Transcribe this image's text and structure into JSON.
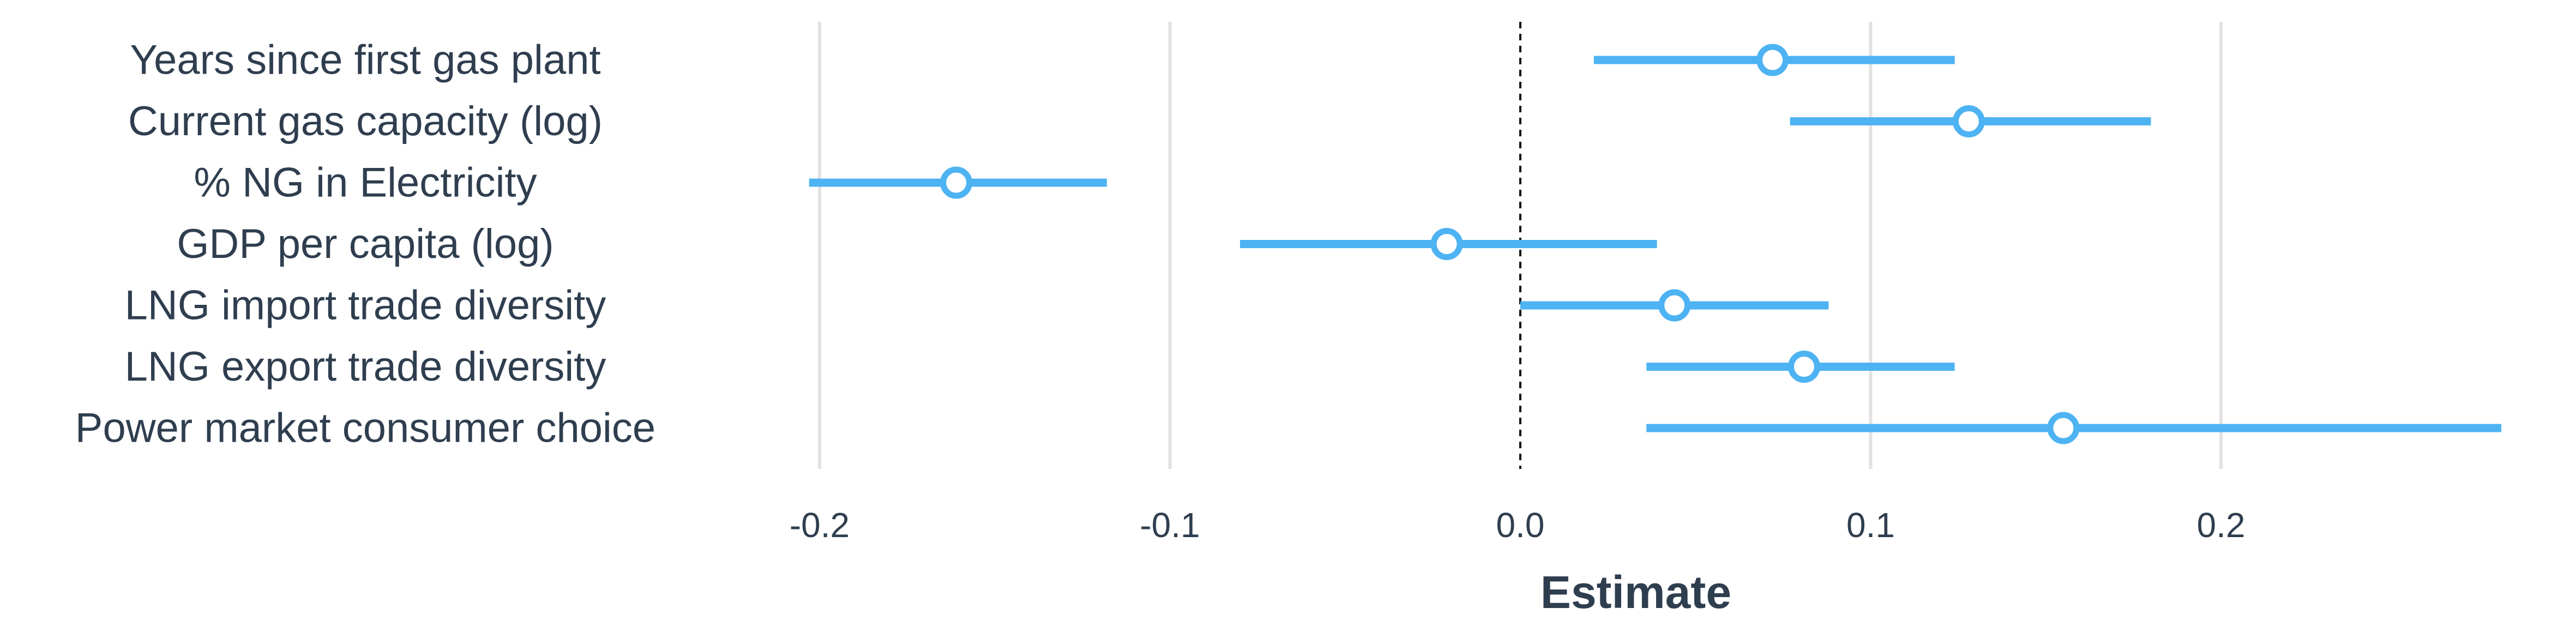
{
  "chart_data": {
    "type": "scatter",
    "xlabel": "Estimate",
    "ylabel": "",
    "xlim": [
      -0.2,
      0.28
    ],
    "x_ticks": [
      -0.2,
      -0.1,
      0.0,
      0.1,
      0.2
    ],
    "x_tick_labels": [
      "-0.2",
      "-0.1",
      "0.0",
      "0.1",
      "0.2"
    ],
    "grid": true,
    "reference_line": 0.0,
    "colors": {
      "point": "#4db3f2",
      "text": "#2f3e4f"
    },
    "categories": [
      "Years since first gas plant",
      "Current gas capacity (log)",
      "% NG in Electricity",
      "GDP per capita (log)",
      "LNG import trade diversity",
      "LNG export trade diversity",
      "Power market consumer choice"
    ],
    "points": [
      {
        "estimate": 0.072,
        "low": 0.021,
        "high": 0.124
      },
      {
        "estimate": 0.128,
        "low": 0.077,
        "high": 0.18
      },
      {
        "estimate": -0.161,
        "low": -0.203,
        "high": -0.118
      },
      {
        "estimate": -0.021,
        "low": -0.08,
        "high": 0.039
      },
      {
        "estimate": 0.044,
        "low": 0.0,
        "high": 0.088
      },
      {
        "estimate": 0.081,
        "low": 0.036,
        "high": 0.124
      },
      {
        "estimate": 0.155,
        "low": 0.036,
        "high": 0.28
      }
    ]
  }
}
